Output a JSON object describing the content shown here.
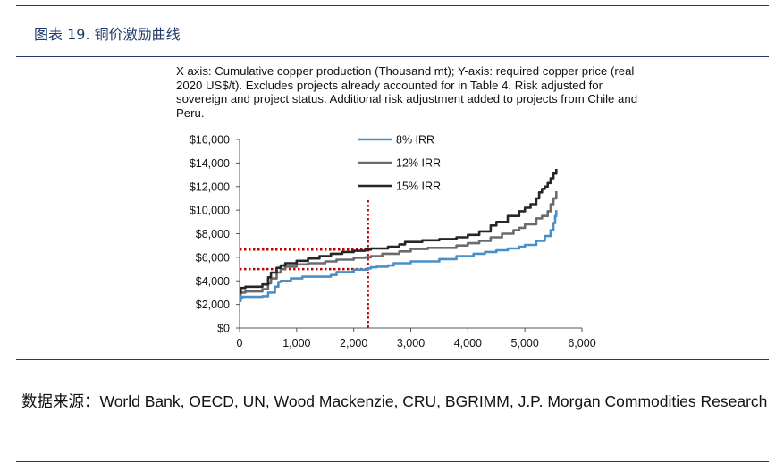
{
  "figure": {
    "title": "图表 19. 铜价激励曲线",
    "note": "X axis: Cumulative copper production (Thousand mt); Y-axis: required copper price (real 2020 US$/t).  Excludes projects already accounted for in Table 4. Risk adjusted for sovereign and project status.  Additional risk adjustment added to projects from Chile and Peru.",
    "source": "数据来源：World Bank, OECD, UN, Wood Mackenzie, CRU, BGRIMM, J.P. Morgan Commodities Research"
  },
  "colors": {
    "rule": "#1f3a6b",
    "irr8": "#4a90c8",
    "irr12": "#6b6b6b",
    "irr15": "#262626",
    "guide": "#c00000"
  },
  "chart_data": {
    "type": "line",
    "title": "",
    "xlabel": "Cumulative copper production (Thousand mt)",
    "ylabel": "required copper price (real 2020 US$/t)",
    "xlim": [
      0,
      6000
    ],
    "ylim": [
      0,
      16000
    ],
    "x_ticks": [
      0,
      1000,
      2000,
      3000,
      4000,
      5000,
      6000
    ],
    "x_tick_labels": [
      "0",
      "1,000",
      "2,000",
      "3,000",
      "4,000",
      "5,000",
      "6,000"
    ],
    "y_ticks": [
      0,
      2000,
      4000,
      6000,
      8000,
      10000,
      12000,
      14000,
      16000
    ],
    "y_tick_labels": [
      "$0",
      "$2,000",
      "$4,000",
      "$6,000",
      "$8,000",
      "$10,000",
      "$12,000",
      "$14,000",
      "$16,000"
    ],
    "grid": false,
    "legend_position": "top-center",
    "series": [
      {
        "name": "8% IRR",
        "color": "#4a90c8",
        "x": [
          0,
          20,
          50,
          400,
          500,
          620,
          680,
          720,
          900,
          1100,
          1600,
          1700,
          2000,
          2250,
          2300,
          2400,
          2600,
          2700,
          3000,
          3500,
          3800,
          4100,
          4300,
          4500,
          4700,
          4900,
          5000,
          5200,
          5350,
          5450,
          5500,
          5530,
          5550
        ],
        "y": [
          2300,
          2600,
          2650,
          2700,
          3000,
          3500,
          3900,
          4000,
          4200,
          4350,
          4500,
          4750,
          4950,
          5050,
          5150,
          5200,
          5300,
          5500,
          5650,
          5850,
          6100,
          6300,
          6450,
          6600,
          6750,
          6900,
          7050,
          7400,
          7800,
          8300,
          8900,
          9500,
          10000
        ]
      },
      {
        "name": "12% IRR",
        "color": "#6b6b6b",
        "x": [
          0,
          20,
          100,
          400,
          500,
          550,
          650,
          720,
          800,
          1000,
          1200,
          1500,
          1700,
          2000,
          2200,
          2300,
          2500,
          2800,
          3000,
          3300,
          3800,
          4000,
          4200,
          4400,
          4600,
          4800,
          4900,
          5000,
          5200,
          5300,
          5400,
          5450,
          5500,
          5550
        ],
        "y": [
          2800,
          3000,
          3100,
          3300,
          3800,
          4200,
          4700,
          5000,
          5200,
          5400,
          5500,
          5650,
          5800,
          5950,
          6000,
          6100,
          6300,
          6500,
          6700,
          6800,
          7000,
          7200,
          7400,
          7700,
          8000,
          8300,
          8500,
          8800,
          9300,
          9500,
          9900,
          10500,
          11000,
          11600
        ]
      },
      {
        "name": "15% IRR",
        "color": "#262626",
        "x": [
          0,
          20,
          100,
          400,
          500,
          550,
          650,
          720,
          800,
          1000,
          1200,
          1400,
          1600,
          1800,
          2000,
          2200,
          2300,
          2600,
          2800,
          2900,
          3200,
          3500,
          3800,
          4000,
          4200,
          4400,
          4500,
          4700,
          4900,
          5000,
          5100,
          5200,
          5250,
          5300,
          5350,
          5400,
          5450,
          5500,
          5550
        ],
        "y": [
          3000,
          3400,
          3500,
          3700,
          4300,
          4700,
          5100,
          5300,
          5500,
          5700,
          5900,
          6100,
          6300,
          6450,
          6550,
          6650,
          6750,
          6900,
          7100,
          7300,
          7450,
          7550,
          7700,
          7900,
          8200,
          8700,
          9000,
          9500,
          9900,
          10200,
          10500,
          11000,
          11500,
          11800,
          12000,
          12300,
          12700,
          13100,
          13500
        ]
      }
    ],
    "annotations": {
      "vertical_guide_x": 2250,
      "horizontal_guides_y": [
        6650,
        5000
      ]
    }
  }
}
